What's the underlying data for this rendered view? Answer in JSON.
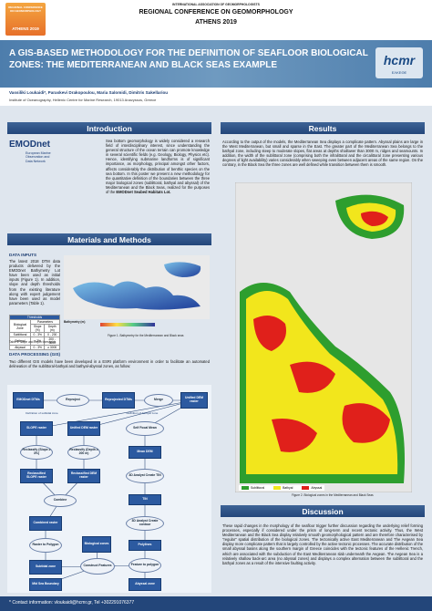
{
  "header": {
    "association": "INTERNATIONAL ASSOCIATION OF GEOMORPHOLOGISTS",
    "conference": "REGIONAL CONFERENCE ON GEOMORPHOLOGY",
    "place": "ATHENS 2019",
    "logo_text": "REGIONAL CONFERENCE ON GEOMORPHOLOGY",
    "logo_place": "ATHENS 2019",
    "hcmr": "hcmr",
    "hcmr_sub": "ΕΛΚΕΘΕ"
  },
  "title": "A GIS-BASED METHODOLOGY FOR THE DEFINITION OF SEAFLOOR BIOLOGICAL ZONES: THE MEDITERRANEAN AND BLACK SEAS EXAMPLE",
  "authors": "Vassiliki Loukaidi*, Paraskevi Drakopoulou, Maria Salomidi, Dimitris Sakellariou",
  "affiliation": "Institute of Oceanography, Hellenic Centre for Marine Research, 19013 Anavyssos, Greece",
  "introduction": {
    "heading": "Introduction",
    "logo": "EMODnet",
    "logo_sub": "European Marine Observation and Data Network",
    "text": "Sea bottom geomorphology is widely considered a research field of interdisciplinary interest, since understanding the general structure of the ocean terrain can promote knowledge in several scientific fields (e.g. Geology, Biology, Physics etc). Hence, identifying submarine landforms is of significant importance, as morphology, principal amongst other factors, affects considerably the distribution of benthic species on the sea bottom. In this poster we present a new methodology for the quantitative definition of the boundaries between the three major biological zones (sublittoral, bathyal and abyssal) of the Mediterranean and the Black Seas, realized for the purposes of the",
    "text_bold": "EMODnet Seabed Habitats Lot."
  },
  "methods": {
    "heading": "Materials and Methods",
    "inputs_title": "DATA INPUTS",
    "inputs_text": "The latest 2018 DTM data products delivered by the EMODnet Bathymetry Lot have been used as initial inputs (Figure 1). In addition, slope and depth thresholds from the existing literature along with expert judgement have been used as model parameters (Table 1).",
    "table": {
      "title": "Thresholds",
      "header": [
        "Biological Zone",
        "Parameters"
      ],
      "subheader": [
        "Slope (%)",
        "Depth (m)"
      ],
      "rows": [
        [
          "Sublittoral",
          "0 - 3%",
          "0 - 200"
        ],
        [
          "Bathyal",
          "≥ 3%",
          "200 - 3000"
        ],
        [
          "Abyssal",
          "0 - 3%",
          "≥ 3000"
        ]
      ],
      "caption": "Table 1. Slope and Depth thresholds"
    },
    "figure1": {
      "legend": "Bathymetry (m)",
      "caption": "Figure 1. Bathymetry for the Mediterranean and Black seas"
    },
    "processing_title": "DATA PROCESSING (GIS)",
    "processing_text": "Two different GIS models have been developed in a ESRI platform environment in order to facilitate an automated delineation of the sublittoral-bathyal and bathyal-abyssal zones, as follow:",
    "flow": [
      "EMODnet DTMs",
      "Reproject",
      "Reprojected DTMs",
      "Merge",
      "Unified DEM raster",
      "Definition of subtidal zone",
      "Definition of bathyal zone",
      "SLOPE raster",
      "Unified DEM raster",
      "Self Focal Mean",
      "Reclassify (Slope ≥ 3%)",
      "Reclassify (Depth ≥ 200 m)",
      "Mean DEM",
      "Reclassified SLOPE raster",
      "Reclassified DEM raster",
      "3D Analyst Create TIN",
      "Combine",
      "TIN",
      "Combined raster",
      "3D Analyst Create contour",
      "Raster to Polygon",
      "Biological zones",
      "Polylines",
      "Subtidal zone",
      "Construct Features",
      "Feature to polygon",
      "Mid Sea Boundary",
      "Abyssal zone"
    ]
  },
  "results": {
    "heading": "Results",
    "text": "According to the output of the models, the Mediterranean Sea displays a complicate pattern. Abyssal plains are large in the West Mediterranean, but small and sparse in the East. The greater part of the Mediterranean Sea belongs to the bathyal zone, including steep to moderate slopes, flat areas at depths shallower than 3000 m, ridges and seamounts. In addition, the width of the sublittoral zone (comprising both the infralittoral and the circalittoral zone presenting various degrees of light availability) varies considerably when sweeping even between adjacent areas of the same region. On the contrary, in the Black Sea the three zones are well defined while transition between them is smooth.",
    "legend": [
      {
        "name": "Sublittoral",
        "color": "#2e9e2e"
      },
      {
        "name": "Bathyal",
        "color": "#f2e61c"
      },
      {
        "name": "Abyssal",
        "color": "#e0201b"
      }
    ],
    "caption": "Figure 2. Biological zones in the Mediterranean and Black Seas"
  },
  "discussion": {
    "heading": "Discussion",
    "text": "These rapid changes in the morphology of the seafloor trigger further discussion regarding the underlying relief forming processes, especially if considered under the prism of long-term and recent tectonic activity. Thus, the West Mediterranean and the Black Sea display relatively smooth geomorphological pattern and are therefore characterised by \"regular\" spatial distribution of the biological zones. The tectonically active East Mediterranean and The Aegean Sea display more complicate pattern that is largely controlled by the active tectonic processes. The accurate distribution of the small abyssal basins along the southern margin of Greece coincides with the tectonic features of the Hellenic Trench, which are associated with the subduction of the East Mediterranean slab underneath the Aegean. The Aegean Sea is a relatively shallow back-arc area (no abyssal zones) and displays a complex alternation between the sublittoral and the bathyal zones as a result of the intensive faulting activity."
  },
  "footer": "* Contact information: vloukaidi@hcmr.gr, Tel +302291076377"
}
